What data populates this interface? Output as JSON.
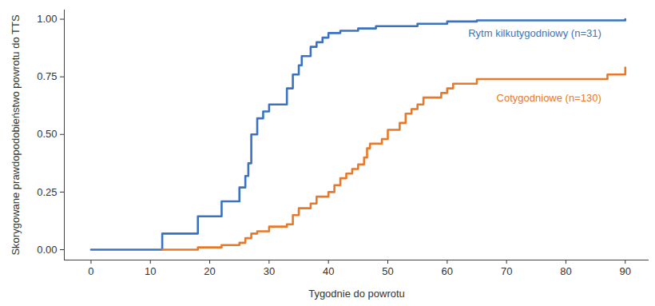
{
  "chart_data": {
    "type": "step",
    "x_label": "Tygodnie do powrotu",
    "y_label": "Skorygowane prawdopodobieństwo powrotu do TTS",
    "xlim": [
      -4.5,
      94
    ],
    "ylim": [
      -0.045,
      1.04
    ],
    "xticks": [
      0,
      10,
      20,
      30,
      40,
      50,
      60,
      70,
      80,
      90
    ],
    "yticks": [
      {
        "value": 0,
        "label": "0.00"
      },
      {
        "value": 0.25,
        "label": "0.25"
      },
      {
        "value": 0.5,
        "label": "0.50"
      },
      {
        "value": 0.75,
        "label": "0.75"
      },
      {
        "value": 1,
        "label": "1.00"
      }
    ],
    "grid": false,
    "series": [
      {
        "name": "Rytm kilkutygodniowy (n=31)",
        "color": "#3a73c2",
        "x": [
          0,
          12,
          18,
          22,
          25,
          26,
          26.5,
          27,
          28,
          29,
          30,
          33,
          34,
          35,
          35.5,
          37,
          38,
          39,
          40,
          42,
          45,
          48,
          55,
          60,
          65,
          90
        ],
        "values": [
          0,
          0.07,
          0.145,
          0.21,
          0.27,
          0.32,
          0.375,
          0.5,
          0.57,
          0.6,
          0.63,
          0.7,
          0.76,
          0.8,
          0.84,
          0.88,
          0.9,
          0.92,
          0.94,
          0.95,
          0.96,
          0.97,
          0.98,
          0.99,
          0.995,
          1.0
        ]
      },
      {
        "name": "Cotygodniowe (n=130)",
        "color": "#e8792a",
        "x": [
          12,
          18,
          22,
          25,
          26,
          27,
          28,
          30,
          33,
          34,
          35,
          37,
          38,
          40,
          41,
          42,
          43,
          44,
          45,
          46,
          46.5,
          47,
          49,
          50,
          52,
          53,
          54,
          55,
          56,
          59,
          60,
          61,
          65,
          87,
          90
        ],
        "values": [
          0,
          0.01,
          0.02,
          0.03,
          0.05,
          0.07,
          0.08,
          0.1,
          0.11,
          0.15,
          0.18,
          0.2,
          0.23,
          0.25,
          0.28,
          0.31,
          0.33,
          0.35,
          0.37,
          0.4,
          0.44,
          0.46,
          0.48,
          0.52,
          0.55,
          0.59,
          0.61,
          0.63,
          0.66,
          0.68,
          0.7,
          0.72,
          0.74,
          0.76,
          0.79
        ]
      }
    ]
  }
}
